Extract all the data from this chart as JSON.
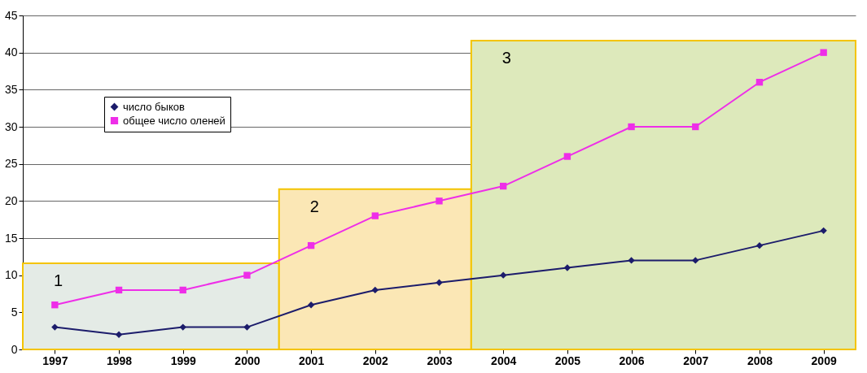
{
  "chart_data": {
    "type": "line",
    "categories": [
      "1997",
      "1998",
      "1999",
      "2000",
      "2001",
      "2002",
      "2003",
      "2004",
      "2005",
      "2006",
      "2007",
      "2008",
      "2009"
    ],
    "series": [
      {
        "name": "число быков",
        "color": "#1c1c6b",
        "marker": "diamond",
        "values": [
          3,
          2,
          3,
          3,
          6,
          8,
          9,
          10,
          11,
          12,
          12,
          14,
          16
        ]
      },
      {
        "name": "общее число оленей",
        "color": "#ee2ee8",
        "marker": "square",
        "values": [
          6,
          8,
          8,
          10,
          14,
          18,
          20,
          22,
          26,
          30,
          30,
          36,
          40
        ]
      }
    ],
    "bands": [
      {
        "axis": "x",
        "from": "1997",
        "to": "2000",
        "label": "1",
        "color": "#e4ebe6"
      },
      {
        "axis": "x",
        "from": "2001",
        "to": "2003",
        "label": "2",
        "color": "#fbe7b5"
      },
      {
        "axis": "x",
        "from": "2004",
        "to": "2009",
        "label": "3",
        "color": "#dde9bb"
      }
    ],
    "ylim": [
      0,
      45
    ],
    "yticks": [
      0,
      5,
      10,
      15,
      20,
      25,
      30,
      35,
      40,
      45
    ],
    "grid": "y",
    "legend": "top left",
    "line_style": "solid"
  }
}
